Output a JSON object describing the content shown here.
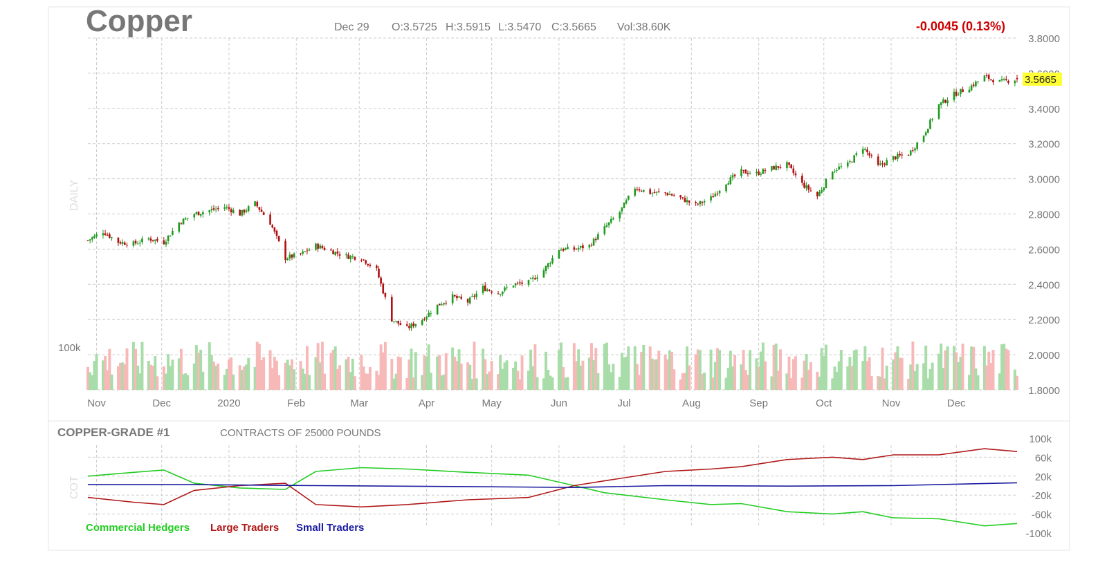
{
  "header": {
    "symbol": "Copper",
    "date": "Dec 29",
    "open": "O:3.5725",
    "high": "H:3.5915",
    "low": "L:3.5470",
    "close": "C:3.5665",
    "volume": "Vol:38.60K",
    "change": "-0.0045 (0.13%)"
  },
  "price_panel": {
    "side_label": "DAILY",
    "volume_scale_label": "100k",
    "last_price_tag": "3.5665"
  },
  "cot_panel": {
    "title": "COPPER-GRADE #1",
    "subtitle": "CONTRACTS OF 25000 POUNDS",
    "side_label": "COT"
  },
  "colors": {
    "up_candle": "#1f9a1f",
    "down_candle": "#b01010",
    "up_volume": "#a8dca8",
    "down_volume": "#f7b8b8",
    "commercial": "#22cc22",
    "large": "#b01818",
    "small": "#1a1aa0",
    "last_price_bg": "#ffff33",
    "change_text": "#cc0000"
  },
  "chart_data": [
    {
      "type": "candlestick",
      "title": "Copper",
      "y_axis_ticks": [
        "3.8000",
        "3.6000",
        "3.4000",
        "3.2000",
        "3.0000",
        "2.8000",
        "2.6000",
        "2.4000",
        "2.2000",
        "2.0000",
        "1.8000"
      ],
      "ylim": [
        1.8,
        3.8
      ],
      "x_axis_ticks": [
        "Nov",
        "Dec",
        "2020",
        "Feb",
        "Mar",
        "Apr",
        "May",
        "Jun",
        "Jul",
        "Aug",
        "Sep",
        "Oct",
        "Nov",
        "Dec"
      ],
      "approx_close_series": [
        {
          "date": "2019-10-28",
          "close": 2.65
        },
        {
          "date": "2019-11-04",
          "close": 2.7
        },
        {
          "date": "2019-11-11",
          "close": 2.64
        },
        {
          "date": "2019-11-18",
          "close": 2.63
        },
        {
          "date": "2019-11-25",
          "close": 2.66
        },
        {
          "date": "2019-12-02",
          "close": 2.64
        },
        {
          "date": "2019-12-09",
          "close": 2.75
        },
        {
          "date": "2019-12-16",
          "close": 2.8
        },
        {
          "date": "2019-12-23",
          "close": 2.82
        },
        {
          "date": "2019-12-30",
          "close": 2.84
        },
        {
          "date": "2020-01-06",
          "close": 2.8
        },
        {
          "date": "2020-01-13",
          "close": 2.86
        },
        {
          "date": "2020-01-20",
          "close": 2.75
        },
        {
          "date": "2020-01-27",
          "close": 2.55
        },
        {
          "date": "2020-02-03",
          "close": 2.57
        },
        {
          "date": "2020-02-10",
          "close": 2.62
        },
        {
          "date": "2020-02-17",
          "close": 2.59
        },
        {
          "date": "2020-02-24",
          "close": 2.56
        },
        {
          "date": "2020-03-02",
          "close": 2.55
        },
        {
          "date": "2020-03-09",
          "close": 2.48
        },
        {
          "date": "2020-03-16",
          "close": 2.2
        },
        {
          "date": "2020-03-23",
          "close": 2.15
        },
        {
          "date": "2020-03-30",
          "close": 2.2
        },
        {
          "date": "2020-04-06",
          "close": 2.28
        },
        {
          "date": "2020-04-13",
          "close": 2.33
        },
        {
          "date": "2020-04-20",
          "close": 2.3
        },
        {
          "date": "2020-04-27",
          "close": 2.38
        },
        {
          "date": "2020-05-04",
          "close": 2.35
        },
        {
          "date": "2020-05-11",
          "close": 2.4
        },
        {
          "date": "2020-05-18",
          "close": 2.41
        },
        {
          "date": "2020-05-25",
          "close": 2.48
        },
        {
          "date": "2020-06-01",
          "close": 2.6
        },
        {
          "date": "2020-06-08",
          "close": 2.6
        },
        {
          "date": "2020-06-15",
          "close": 2.62
        },
        {
          "date": "2020-06-22",
          "close": 2.72
        },
        {
          "date": "2020-06-29",
          "close": 2.81
        },
        {
          "date": "2020-07-06",
          "close": 2.95
        },
        {
          "date": "2020-07-13",
          "close": 2.92
        },
        {
          "date": "2020-07-20",
          "close": 2.92
        },
        {
          "date": "2020-07-27",
          "close": 2.89
        },
        {
          "date": "2020-08-03",
          "close": 2.85
        },
        {
          "date": "2020-08-10",
          "close": 2.89
        },
        {
          "date": "2020-08-17",
          "close": 2.98
        },
        {
          "date": "2020-08-24",
          "close": 3.04
        },
        {
          "date": "2020-08-31",
          "close": 3.03
        },
        {
          "date": "2020-09-07",
          "close": 3.06
        },
        {
          "date": "2020-09-14",
          "close": 3.08
        },
        {
          "date": "2020-09-21",
          "close": 2.97
        },
        {
          "date": "2020-09-28",
          "close": 2.9
        },
        {
          "date": "2020-10-05",
          "close": 3.05
        },
        {
          "date": "2020-10-12",
          "close": 3.08
        },
        {
          "date": "2020-10-19",
          "close": 3.18
        },
        {
          "date": "2020-10-26",
          "close": 3.07
        },
        {
          "date": "2020-11-02",
          "close": 3.12
        },
        {
          "date": "2020-11-09",
          "close": 3.14
        },
        {
          "date": "2020-11-16",
          "close": 3.25
        },
        {
          "date": "2020-11-23",
          "close": 3.42
        },
        {
          "date": "2020-11-30",
          "close": 3.48
        },
        {
          "date": "2020-12-07",
          "close": 3.52
        },
        {
          "date": "2020-12-14",
          "close": 3.58
        },
        {
          "date": "2020-12-21",
          "close": 3.55
        },
        {
          "date": "2020-12-29",
          "close": 3.5665
        }
      ],
      "last": {
        "date": "2020-12-29",
        "open": 3.5725,
        "high": 3.5915,
        "low": 3.547,
        "close": 3.5665,
        "volume_k": 38.6
      }
    },
    {
      "type": "line",
      "title": "COPPER-GRADE #1",
      "y_axis_ticks": [
        "100k",
        "60k",
        "20k",
        "-20k",
        "-60k",
        "-100k"
      ],
      "ylim": [
        -100000,
        100000
      ],
      "legend_position": "bottom-left",
      "series": [
        {
          "name": "Commercial Hedgers",
          "color": "#22cc22",
          "values": [
            {
              "date": "2019-10-28",
              "v": 20000
            },
            {
              "date": "2019-11-18",
              "v": 28000
            },
            {
              "date": "2019-12-02",
              "v": 33000
            },
            {
              "date": "2019-12-16",
              "v": 5000
            },
            {
              "date": "2020-01-06",
              "v": -5000
            },
            {
              "date": "2020-01-27",
              "v": -8000
            },
            {
              "date": "2020-02-10",
              "v": 30000
            },
            {
              "date": "2020-03-02",
              "v": 38000
            },
            {
              "date": "2020-03-23",
              "v": 35000
            },
            {
              "date": "2020-04-20",
              "v": 28000
            },
            {
              "date": "2020-05-18",
              "v": 22000
            },
            {
              "date": "2020-06-08",
              "v": 0
            },
            {
              "date": "2020-06-22",
              "v": -15000
            },
            {
              "date": "2020-07-20",
              "v": -30000
            },
            {
              "date": "2020-08-10",
              "v": -40000
            },
            {
              "date": "2020-08-24",
              "v": -38000
            },
            {
              "date": "2020-09-14",
              "v": -55000
            },
            {
              "date": "2020-10-05",
              "v": -60000
            },
            {
              "date": "2020-10-19",
              "v": -55000
            },
            {
              "date": "2020-11-02",
              "v": -68000
            },
            {
              "date": "2020-11-23",
              "v": -70000
            },
            {
              "date": "2020-12-14",
              "v": -85000
            },
            {
              "date": "2020-12-29",
              "v": -80000
            }
          ]
        },
        {
          "name": "Large Traders",
          "color": "#b01818",
          "values": [
            {
              "date": "2019-10-28",
              "v": -25000
            },
            {
              "date": "2019-11-18",
              "v": -35000
            },
            {
              "date": "2019-12-02",
              "v": -40000
            },
            {
              "date": "2019-12-16",
              "v": -10000
            },
            {
              "date": "2020-01-06",
              "v": 0
            },
            {
              "date": "2020-01-27",
              "v": 5000
            },
            {
              "date": "2020-02-10",
              "v": -40000
            },
            {
              "date": "2020-03-02",
              "v": -45000
            },
            {
              "date": "2020-03-23",
              "v": -40000
            },
            {
              "date": "2020-04-20",
              "v": -30000
            },
            {
              "date": "2020-05-18",
              "v": -25000
            },
            {
              "date": "2020-06-08",
              "v": 0
            },
            {
              "date": "2020-06-22",
              "v": 10000
            },
            {
              "date": "2020-07-20",
              "v": 30000
            },
            {
              "date": "2020-08-10",
              "v": 35000
            },
            {
              "date": "2020-08-24",
              "v": 40000
            },
            {
              "date": "2020-09-14",
              "v": 55000
            },
            {
              "date": "2020-10-05",
              "v": 60000
            },
            {
              "date": "2020-10-19",
              "v": 55000
            },
            {
              "date": "2020-11-02",
              "v": 65000
            },
            {
              "date": "2020-11-23",
              "v": 65000
            },
            {
              "date": "2020-12-14",
              "v": 78000
            },
            {
              "date": "2020-12-29",
              "v": 72000
            }
          ]
        },
        {
          "name": "Small Traders",
          "color": "#1a1aa0",
          "values": [
            {
              "date": "2019-10-28",
              "v": 2000
            },
            {
              "date": "2019-12-16",
              "v": 2000
            },
            {
              "date": "2020-02-10",
              "v": 0
            },
            {
              "date": "2020-04-20",
              "v": -2000
            },
            {
              "date": "2020-06-08",
              "v": -4000
            },
            {
              "date": "2020-07-20",
              "v": 0
            },
            {
              "date": "2020-09-14",
              "v": -1000
            },
            {
              "date": "2020-11-02",
              "v": 0
            },
            {
              "date": "2020-12-29",
              "v": 6000
            }
          ]
        }
      ]
    }
  ]
}
